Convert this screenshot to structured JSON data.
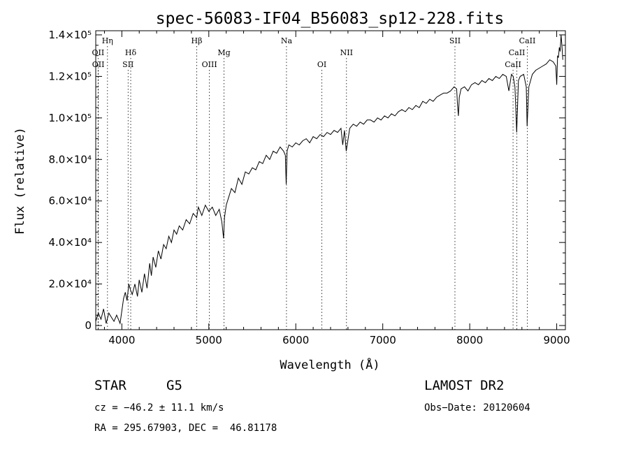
{
  "chart_data": {
    "type": "line",
    "title": "spec-56083-IF04_B56083_sp12-228.fits",
    "xlabel": "Wavelength (Å)",
    "ylabel": "Flux (relative)",
    "xlim": [
      3700,
      9100
    ],
    "ylim": [
      -2000,
      142000
    ],
    "grid": false,
    "legend": "none",
    "x_ticks": [
      {
        "value": 4000,
        "label": "4000"
      },
      {
        "value": 5000,
        "label": "5000"
      },
      {
        "value": 6000,
        "label": "6000"
      },
      {
        "value": 7000,
        "label": "7000"
      },
      {
        "value": 8000,
        "label": "8000"
      },
      {
        "value": 9000,
        "label": "9000"
      }
    ],
    "y_ticks": [
      {
        "value": 0,
        "label": "0"
      },
      {
        "value": 20000,
        "label": "2.0×10⁴"
      },
      {
        "value": 40000,
        "label": "4.0×10⁴"
      },
      {
        "value": 60000,
        "label": "6.0×10⁴"
      },
      {
        "value": 80000,
        "label": "8.0×10⁴"
      },
      {
        "value": 100000,
        "label": "1.0×10⁵"
      },
      {
        "value": 120000,
        "label": "1.2×10⁵"
      },
      {
        "value": 140000,
        "label": "1.4×10⁵"
      }
    ],
    "spectrum": {
      "x": [
        3700,
        3730,
        3760,
        3790,
        3820,
        3850,
        3880,
        3910,
        3940,
        3960,
        3980,
        4000,
        4020,
        4040,
        4060,
        4080,
        4100,
        4120,
        4150,
        4180,
        4200,
        4230,
        4260,
        4290,
        4320,
        4340,
        4360,
        4390,
        4420,
        4450,
        4480,
        4510,
        4540,
        4570,
        4600,
        4630,
        4660,
        4700,
        4740,
        4780,
        4820,
        4860,
        4880,
        4920,
        4960,
        5000,
        5040,
        5080,
        5120,
        5150,
        5170,
        5180,
        5200,
        5230,
        5260,
        5300,
        5340,
        5380,
        5420,
        5460,
        5500,
        5540,
        5580,
        5620,
        5660,
        5700,
        5740,
        5780,
        5820,
        5860,
        5880,
        5890,
        5900,
        5920,
        5960,
        6000,
        6040,
        6080,
        6120,
        6160,
        6200,
        6240,
        6280,
        6320,
        6360,
        6400,
        6440,
        6480,
        6520,
        6540,
        6560,
        6580,
        6620,
        6660,
        6700,
        6740,
        6780,
        6820,
        6860,
        6900,
        6940,
        6980,
        7020,
        7060,
        7100,
        7140,
        7180,
        7220,
        7260,
        7300,
        7340,
        7380,
        7420,
        7460,
        7500,
        7540,
        7580,
        7620,
        7660,
        7700,
        7740,
        7780,
        7820,
        7850,
        7860,
        7870,
        7880,
        7900,
        7940,
        7980,
        8020,
        8060,
        8100,
        8140,
        8180,
        8220,
        8260,
        8300,
        8340,
        8380,
        8420,
        8450,
        8480,
        8500,
        8520,
        8540,
        8550,
        8560,
        8580,
        8620,
        8650,
        8660,
        8680,
        8720,
        8760,
        8800,
        8840,
        8880,
        8920,
        8960,
        8990,
        9000,
        9010,
        9020,
        9030,
        9040,
        9050,
        9060,
        9070
      ],
      "y": [
        2000,
        6000,
        3000,
        8000,
        1000,
        6000,
        4000,
        2000,
        5000,
        3000,
        1000,
        7000,
        13000,
        16000,
        12000,
        20000,
        17000,
        15000,
        20000,
        14000,
        22000,
        16000,
        25000,
        18000,
        30000,
        24000,
        33000,
        28000,
        36000,
        32000,
        39000,
        37000,
        43000,
        40000,
        46000,
        44000,
        48000,
        46000,
        51000,
        49000,
        54000,
        52000,
        57000,
        53000,
        58000,
        55000,
        57000,
        53000,
        56000,
        50000,
        42000,
        52000,
        58000,
        62000,
        66000,
        64000,
        71000,
        68000,
        74000,
        73000,
        76000,
        75000,
        79000,
        78000,
        82000,
        80000,
        84000,
        83000,
        86000,
        84000,
        82000,
        68000,
        84000,
        87000,
        86000,
        88000,
        87000,
        89000,
        90000,
        88000,
        91000,
        90000,
        92000,
        91000,
        93000,
        92000,
        94000,
        93000,
        95000,
        87000,
        94000,
        84000,
        95000,
        97000,
        96000,
        98000,
        97000,
        99000,
        99000,
        98000,
        100000,
        99000,
        101000,
        100000,
        102000,
        101000,
        103000,
        104000,
        103000,
        105000,
        104000,
        106000,
        105000,
        108000,
        107000,
        109000,
        108000,
        110000,
        111000,
        112000,
        112000,
        113000,
        115000,
        114000,
        106000,
        101000,
        110000,
        114000,
        115000,
        113000,
        116000,
        117000,
        116000,
        118000,
        117000,
        119000,
        118000,
        120000,
        119000,
        121000,
        120000,
        113000,
        121000,
        120000,
        115000,
        93000,
        106000,
        118000,
        120000,
        121000,
        115000,
        96000,
        115000,
        121000,
        123000,
        124000,
        125000,
        126000,
        128000,
        127000,
        125000,
        116000,
        130000,
        129000,
        134000,
        132000,
        140000,
        135000,
        128000
      ]
    },
    "lines": [
      {
        "label": "Hη",
        "wave": 3835,
        "row": 1
      },
      {
        "label": "OII",
        "wave": 3727,
        "row": 2
      },
      {
        "label": "OII",
        "wave": 3729,
        "row": 3
      },
      {
        "label": "Hδ",
        "wave": 4102,
        "row": 2
      },
      {
        "label": "SII",
        "wave": 4072,
        "row": 3
      },
      {
        "label": "Hβ",
        "wave": 4861,
        "row": 1
      },
      {
        "label": "Mg",
        "wave": 5175,
        "row": 2
      },
      {
        "label": "OIII",
        "wave": 5007,
        "row": 3
      },
      {
        "label": "Na",
        "wave": 5893,
        "row": 1
      },
      {
        "label": "OI",
        "wave": 6300,
        "row": 3
      },
      {
        "label": "NII",
        "wave": 6583,
        "row": 2
      },
      {
        "label": "SII",
        "wave": 7830,
        "row": 1
      },
      {
        "label": "CaII",
        "wave": 8662,
        "row": 1
      },
      {
        "label": "CaII",
        "wave": 8542,
        "row": 2
      },
      {
        "label": "CaII",
        "wave": 8498,
        "row": 3
      }
    ]
  },
  "footer": {
    "object_type": "STAR",
    "object_class": "G5",
    "survey": "LAMOST DR2",
    "cz": "cz = −46.2 ± 11.1 km/s",
    "obs_date": "Obs−Date: 20120604",
    "radec": "RA = 295.67903, DEC =  46.81178"
  }
}
